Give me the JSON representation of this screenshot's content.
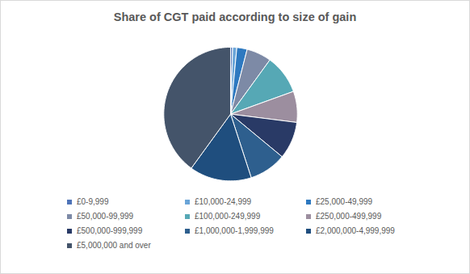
{
  "chart_data": {
    "type": "pie",
    "title": "Share of CGT paid according to size of gain",
    "categories": [
      "£0-9,999",
      "£10,000-24,999",
      "£25,000-49,999",
      "£50,000-99,999",
      "£100,000-249,999",
      "£250,000-499,999",
      "£500,000-999,999",
      "£1,000,000-1,999,999",
      "£2,000,000-4,999,999",
      "£5,000,000 and over"
    ],
    "values": [
      0.5,
      1,
      2.5,
      6,
      9.5,
      7.5,
      9,
      9,
      15,
      40
    ],
    "colors": [
      "#4f74b8",
      "#6aa5d8",
      "#2e79c0",
      "#7d8aa6",
      "#56a8b5",
      "#9c8e9f",
      "#293a66",
      "#2e5f8e",
      "#1f4e7e",
      "#44546a"
    ],
    "legend": "bottom"
  }
}
